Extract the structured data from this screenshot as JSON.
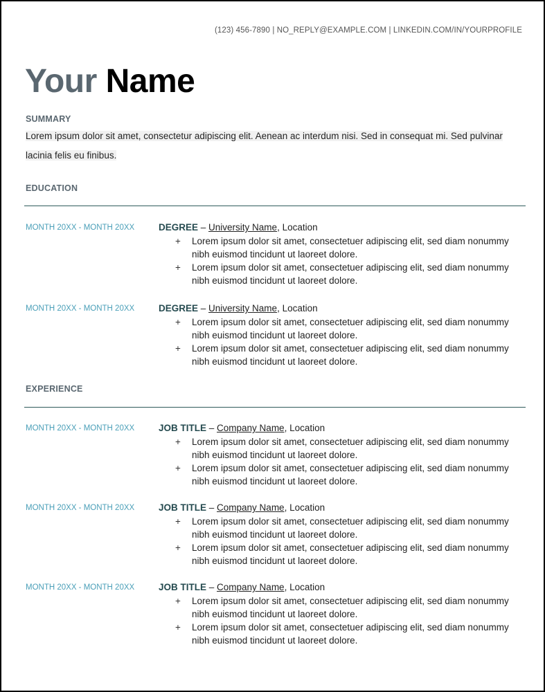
{
  "contact": "(123) 456-7890 | NO_REPLY@EXAMPLE.COM | LINKEDIN.COM/IN/YOURPROFILE",
  "name": {
    "first": "Your",
    "last": "Name"
  },
  "summary": {
    "heading": "SUMMARY",
    "text": "Lorem ipsum dolor sit amet, consectetur adipiscing elit. Aenean ac interdum nisi. Sed in consequat mi. Sed pulvinar lacinia felis eu finibus."
  },
  "education": {
    "heading": "EDUCATION",
    "entries": [
      {
        "date": "MONTH 20XX - MONTH 20XX",
        "title": "DEGREE",
        "org": "University Name",
        "location": "Location",
        "bullets": [
          "Lorem ipsum dolor sit amet, consectetuer adipiscing elit, sed diam nonummy nibh euismod tincidunt ut laoreet dolore.",
          "Lorem ipsum dolor sit amet, consectetuer adipiscing elit, sed diam nonummy nibh euismod tincidunt ut laoreet dolore."
        ]
      },
      {
        "date": "MONTH 20XX - MONTH 20XX",
        "title": "DEGREE",
        "org": "University Name",
        "location": "Location",
        "bullets": [
          "Lorem ipsum dolor sit amet, consectetuer adipiscing elit, sed diam nonummy nibh euismod tincidunt ut laoreet dolore.",
          "Lorem ipsum dolor sit amet, consectetuer adipiscing elit, sed diam nonummy nibh euismod tincidunt ut laoreet dolore."
        ]
      }
    ]
  },
  "experience": {
    "heading": "EXPERIENCE",
    "entries": [
      {
        "date": "MONTH 20XX - MONTH 20XX",
        "title": "JOB TITLE",
        "org": "Company Name",
        "location": "Location",
        "bullets": [
          "Lorem ipsum dolor sit amet, consectetuer adipiscing elit, sed diam nonummy nibh euismod tincidunt ut laoreet dolore.",
          "Lorem ipsum dolor sit amet, consectetuer adipiscing elit, sed diam nonummy nibh euismod tincidunt ut laoreet dolore."
        ]
      },
      {
        "date": "MONTH 20XX - MONTH 20XX",
        "title": "JOB TITLE",
        "org": "Company Name",
        "location": "Location",
        "bullets": [
          "Lorem ipsum dolor sit amet, consectetuer adipiscing elit, sed diam nonummy nibh euismod tincidunt ut laoreet dolore.",
          "Lorem ipsum dolor sit amet, consectetuer adipiscing elit, sed diam nonummy nibh euismod tincidunt ut laoreet dolore."
        ]
      },
      {
        "date": "MONTH 20XX - MONTH 20XX",
        "title": "JOB TITLE",
        "org": "Company Name",
        "location": "Location",
        "bullets": [
          "Lorem ipsum dolor sit amet, consectetuer adipiscing elit, sed diam nonummy nibh euismod tincidunt ut laoreet dolore.",
          "Lorem ipsum dolor sit amet, consectetuer adipiscing elit, sed diam nonummy nibh euismod tincidunt ut laoreet dolore."
        ]
      }
    ]
  },
  "bullet_glyph": "+",
  "separator": " – ",
  "colors": {
    "date": "#4a9fb8",
    "title": "#264b50",
    "rule": "#2d5a5a",
    "heading": "#5a6770"
  }
}
